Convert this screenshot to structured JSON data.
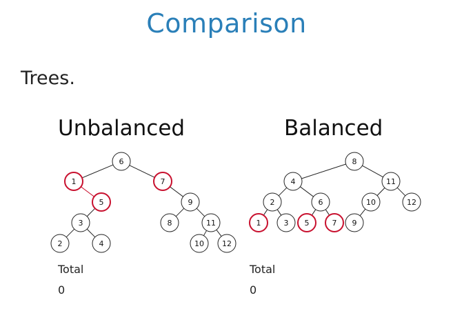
{
  "slide": {
    "title": "Comparison",
    "subtitle": "Trees."
  },
  "colors": {
    "title": "#2a7fb8",
    "highlight": "#c8102e",
    "node_stroke": "#222222",
    "edge": "#222222"
  },
  "trees": [
    {
      "id": "unbalanced",
      "title": "Unbalanced",
      "total_label": "Total",
      "total_value": "0",
      "nodes": [
        {
          "label": "6",
          "highlight": false
        },
        {
          "label": "1",
          "highlight": true
        },
        {
          "label": "7",
          "highlight": true
        },
        {
          "label": "5",
          "highlight": true
        },
        {
          "label": "9",
          "highlight": false
        },
        {
          "label": "3",
          "highlight": false
        },
        {
          "label": "8",
          "highlight": false
        },
        {
          "label": "11",
          "highlight": false
        },
        {
          "label": "2",
          "highlight": false
        },
        {
          "label": "4",
          "highlight": false
        },
        {
          "label": "10",
          "highlight": false
        },
        {
          "label": "12",
          "highlight": false
        }
      ],
      "edges": [
        [
          "6",
          "1"
        ],
        [
          "6",
          "7"
        ],
        [
          "1",
          "5"
        ],
        [
          "7",
          "9"
        ],
        [
          "5",
          "3"
        ],
        [
          "9",
          "8"
        ],
        [
          "9",
          "11"
        ],
        [
          "3",
          "2"
        ],
        [
          "3",
          "4"
        ],
        [
          "11",
          "10"
        ],
        [
          "11",
          "12"
        ]
      ]
    },
    {
      "id": "balanced",
      "title": "Balanced",
      "total_label": "Total",
      "total_value": "0",
      "nodes": [
        {
          "label": "8",
          "highlight": false
        },
        {
          "label": "4",
          "highlight": false
        },
        {
          "label": "11",
          "highlight": false
        },
        {
          "label": "2",
          "highlight": false
        },
        {
          "label": "6",
          "highlight": false
        },
        {
          "label": "10",
          "highlight": false
        },
        {
          "label": "12",
          "highlight": false
        },
        {
          "label": "1",
          "highlight": true
        },
        {
          "label": "3",
          "highlight": false
        },
        {
          "label": "5",
          "highlight": true
        },
        {
          "label": "7",
          "highlight": true
        },
        {
          "label": "9",
          "highlight": false
        }
      ],
      "edges": [
        [
          "8",
          "4"
        ],
        [
          "8",
          "11"
        ],
        [
          "4",
          "2"
        ],
        [
          "4",
          "6"
        ],
        [
          "11",
          "10"
        ],
        [
          "11",
          "12"
        ],
        [
          "2",
          "1"
        ],
        [
          "2",
          "3"
        ],
        [
          "6",
          "5"
        ],
        [
          "6",
          "7"
        ],
        [
          "10",
          "9"
        ]
      ]
    }
  ]
}
